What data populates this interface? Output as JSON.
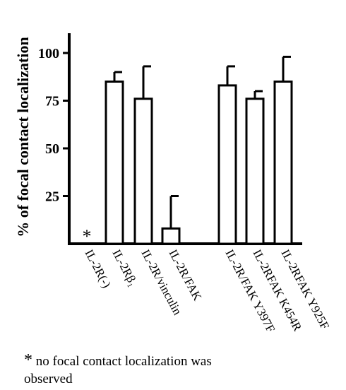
{
  "chart_data": {
    "type": "bar",
    "ylabel": "% of focal contact localization",
    "xlabel": "",
    "ylim": [
      0,
      110
    ],
    "yticks": [
      25,
      50,
      75,
      100
    ],
    "categories": [
      "IL-2R(-)",
      "IL-2Rβ₁",
      "IL-2R/vinculin",
      "IL-2R/FAK",
      "IL-2R/FAK Y397F",
      "IL-2RFAK K454R",
      "IL-2RFAK Y925F"
    ],
    "values": [
      0,
      85,
      76,
      8,
      83,
      76,
      85
    ],
    "errors": [
      0,
      5,
      17,
      17,
      10,
      4,
      13
    ],
    "annotations": [
      "*"
    ]
  },
  "footnote": {
    "star": "*",
    "text": "no focal contact localization was observed"
  }
}
